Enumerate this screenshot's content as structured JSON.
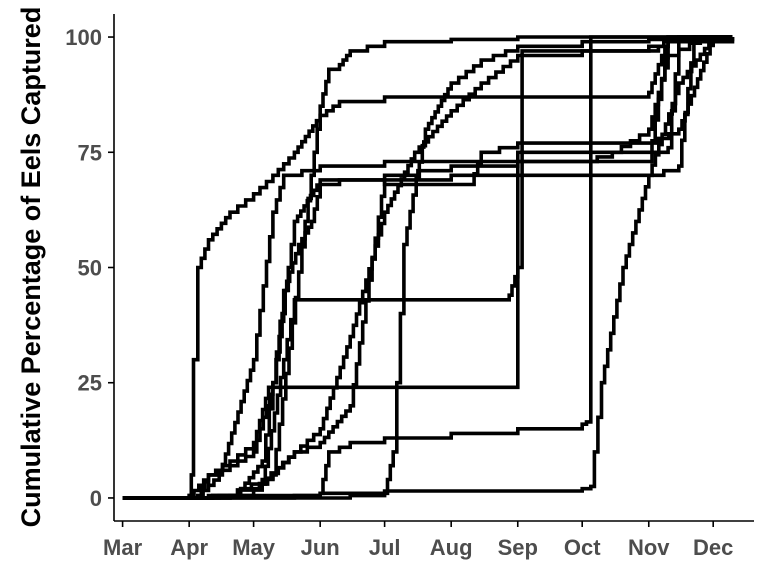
{
  "chart_data": {
    "type": "line",
    "title": "",
    "xlabel": "",
    "ylabel": "Cumulative Percentage of Eels Captured",
    "x_ticks": [
      "Mar",
      "Apr",
      "May",
      "Jun",
      "Jul",
      "Aug",
      "Sep",
      "Oct",
      "Nov",
      "Dec"
    ],
    "y_ticks": [
      0,
      25,
      50,
      75,
      100
    ],
    "xlim": [
      "Feb 25",
      "Dec 20"
    ],
    "ylim": [
      -5,
      105
    ],
    "grid": false,
    "line_color": "#000000",
    "series": [
      {
        "points": [
          [
            "Mar 1",
            0
          ],
          [
            "Apr 1",
            0.5
          ],
          [
            "Apr 2",
            5
          ],
          [
            "Apr 3",
            30
          ],
          [
            "Apr 5",
            50
          ],
          [
            "Apr 10",
            56
          ],
          [
            "Apr 20",
            62
          ],
          [
            "May 1",
            66
          ],
          [
            "May 10",
            70
          ],
          [
            "May 20",
            75
          ],
          [
            "Jun 1",
            83
          ],
          [
            "Jun 10",
            86
          ],
          [
            "Jul 1",
            87
          ],
          [
            "Aug 1",
            87
          ],
          [
            "Sep 1",
            87
          ],
          [
            "Oct 1",
            87
          ],
          [
            "Nov 1",
            88
          ],
          [
            "Nov 10",
            100
          ],
          [
            "Dec 10",
            100
          ]
        ]
      },
      {
        "points": [
          [
            "Mar 1",
            0
          ],
          [
            "Apr 10",
            0.5
          ],
          [
            "Apr 25",
            2
          ],
          [
            "May 5",
            8
          ],
          [
            "May 10",
            25
          ],
          [
            "May 15",
            45
          ],
          [
            "May 22",
            55
          ],
          [
            "May 28",
            60
          ],
          [
            "Jun 1",
            68
          ],
          [
            "Jun 10",
            69
          ],
          [
            "Jul 1",
            69
          ],
          [
            "Aug 1",
            70
          ],
          [
            "Sep 1",
            70
          ],
          [
            "Oct 1",
            70
          ],
          [
            "Nov 1",
            70
          ],
          [
            "Nov 15",
            72
          ],
          [
            "Nov 22",
            100
          ],
          [
            "Dec 10",
            100
          ]
        ]
      },
      {
        "points": [
          [
            "Mar 1",
            0
          ],
          [
            "Apr 12",
            0.5
          ],
          [
            "Apr 25",
            2
          ],
          [
            "May 10",
            5
          ],
          [
            "May 25",
            60
          ],
          [
            "Jun 1",
            85
          ],
          [
            "Jun 5",
            93
          ],
          [
            "Jun 10",
            94
          ],
          [
            "Jun 15",
            97
          ],
          [
            "Jul 1",
            99
          ],
          [
            "Aug 1",
            99.5
          ],
          [
            "Sep 1",
            100
          ],
          [
            "Dec 10",
            100
          ]
        ]
      },
      {
        "points": [
          [
            "Mar 1",
            0
          ],
          [
            "Apr 1",
            0.5
          ],
          [
            "Apr 10",
            5
          ],
          [
            "Apr 20",
            8
          ],
          [
            "May 1",
            12
          ],
          [
            "May 8",
            24
          ],
          [
            "Jun 1",
            24
          ],
          [
            "Jul 1",
            24
          ],
          [
            "Aug 1",
            24
          ],
          [
            "Sep 1",
            24.5
          ],
          [
            "Sep 1",
            75
          ],
          [
            "Oct 1",
            75
          ],
          [
            "Nov 1",
            75
          ],
          [
            "Nov 10",
            76
          ],
          [
            "Nov 15",
            100
          ],
          [
            "Dec 10",
            100
          ]
        ]
      },
      {
        "points": [
          [
            "Mar 1",
            0
          ],
          [
            "Apr 12",
            0.5
          ],
          [
            "May 5",
            3
          ],
          [
            "May 15",
            30
          ],
          [
            "May 20",
            43
          ],
          [
            "Jun 1",
            43
          ],
          [
            "Jul 1",
            43
          ],
          [
            "Aug 1",
            43
          ],
          [
            "Aug 28",
            44
          ],
          [
            "Sep 1",
            50
          ],
          [
            "Sep 3",
            97
          ],
          [
            "Oct 1",
            97
          ],
          [
            "Nov 1",
            97
          ],
          [
            "Nov 10",
            99
          ],
          [
            "Dec 10",
            100
          ]
        ]
      },
      {
        "points": [
          [
            "Mar 1",
            0
          ],
          [
            "May 20",
            0.5
          ],
          [
            "Jun 1",
            1
          ],
          [
            "Jun 5",
            10
          ],
          [
            "Jun 15",
            12
          ],
          [
            "Jul 1",
            13
          ],
          [
            "Aug 1",
            14
          ],
          [
            "Sep 1",
            15
          ],
          [
            "Oct 1",
            16
          ],
          [
            "Oct 3",
            16.5
          ],
          [
            "Oct 5",
            100
          ],
          [
            "Dec 10",
            100
          ]
        ]
      },
      {
        "points": [
          [
            "Mar 1",
            0
          ],
          [
            "Apr 15",
            0.5
          ],
          [
            "May 5",
            3
          ],
          [
            "May 20",
            10
          ],
          [
            "Jun 1",
            12
          ],
          [
            "Jun 15",
            20
          ],
          [
            "Jul 1",
            70
          ],
          [
            "Aug 1",
            72
          ],
          [
            "Sep 1",
            73
          ],
          [
            "Oct 1",
            73
          ],
          [
            "Nov 1",
            73
          ],
          [
            "Nov 10",
            100
          ],
          [
            "Dec 10",
            100
          ]
        ]
      },
      {
        "points": [
          [
            "Mar 1",
            0
          ],
          [
            "Apr 20",
            0.5
          ],
          [
            "May 1",
            2
          ],
          [
            "May 20",
            10
          ],
          [
            "Jun 1",
            15
          ],
          [
            "Jun 15",
            35
          ],
          [
            "Jul 1",
            62
          ],
          [
            "Jul 15",
            75
          ],
          [
            "Aug 1",
            84
          ],
          [
            "Aug 15",
            90
          ],
          [
            "Sep 1",
            96
          ],
          [
            "Oct 1",
            97
          ],
          [
            "Nov 1",
            98
          ],
          [
            "Nov 15",
            100
          ],
          [
            "Dec 10",
            100
          ]
        ]
      },
      {
        "points": [
          [
            "Mar 1",
            0
          ],
          [
            "Apr 20",
            0.5
          ],
          [
            "Jun 1",
            1
          ],
          [
            "Jul 1",
            1.5
          ],
          [
            "Aug 1",
            1.5
          ],
          [
            "Sep 1",
            1.5
          ],
          [
            "Oct 1",
            2
          ],
          [
            "Oct 5",
            2.5
          ],
          [
            "Oct 10",
            25
          ],
          [
            "Oct 20",
            50
          ],
          [
            "Nov 1",
            70
          ],
          [
            "Nov 15",
            90
          ],
          [
            "Dec 1",
            100
          ],
          [
            "Dec 10",
            100
          ]
        ]
      },
      {
        "points": [
          [
            "Mar 1",
            0
          ],
          [
            "Apr 5",
            0.5
          ],
          [
            "Apr 10",
            5
          ],
          [
            "Apr 20",
            7
          ],
          [
            "May 1",
            10
          ],
          [
            "May 10",
            25
          ],
          [
            "May 20",
            60
          ],
          [
            "Jun 1",
            69
          ],
          [
            "Jul 1",
            68
          ],
          [
            "Aug 1",
            68
          ],
          [
            "Aug 10",
            68
          ],
          [
            "Aug 15",
            75
          ],
          [
            "Sep 1",
            77
          ],
          [
            "Oct 1",
            77
          ],
          [
            "Nov 1",
            77
          ],
          [
            "Nov 15",
            80
          ],
          [
            "Dec 1",
            100
          ],
          [
            "Dec 10",
            100
          ]
        ]
      },
      {
        "points": [
          [
            "Mar 1",
            0
          ],
          [
            "Jun 15",
            0.5
          ],
          [
            "Jul 1",
            1
          ],
          [
            "Jul 5",
            10
          ],
          [
            "Jul 10",
            55
          ],
          [
            "Jul 20",
            80
          ],
          [
            "Aug 1",
            90
          ],
          [
            "Aug 15",
            95
          ],
          [
            "Sep 1",
            98
          ],
          [
            "Oct 1",
            99
          ],
          [
            "Nov 1",
            99.5
          ],
          [
            "Dec 10",
            100
          ]
        ]
      },
      {
        "points": [
          [
            "Mar 1",
            0
          ],
          [
            "Apr 5",
            0.5
          ],
          [
            "Apr 15",
            5
          ],
          [
            "May 1",
            30
          ],
          [
            "May 10",
            62
          ],
          [
            "May 15",
            70
          ],
          [
            "Jun 1",
            72
          ],
          [
            "Jul 1",
            73
          ],
          [
            "Aug 1",
            73
          ],
          [
            "Sep 1",
            73
          ],
          [
            "Oct 1",
            73
          ],
          [
            "Oct 15",
            75
          ],
          [
            "Nov 1",
            80
          ],
          [
            "Nov 10",
            96
          ],
          [
            "Nov 25",
            100
          ],
          [
            "Dec 10",
            100
          ]
        ]
      }
    ]
  }
}
